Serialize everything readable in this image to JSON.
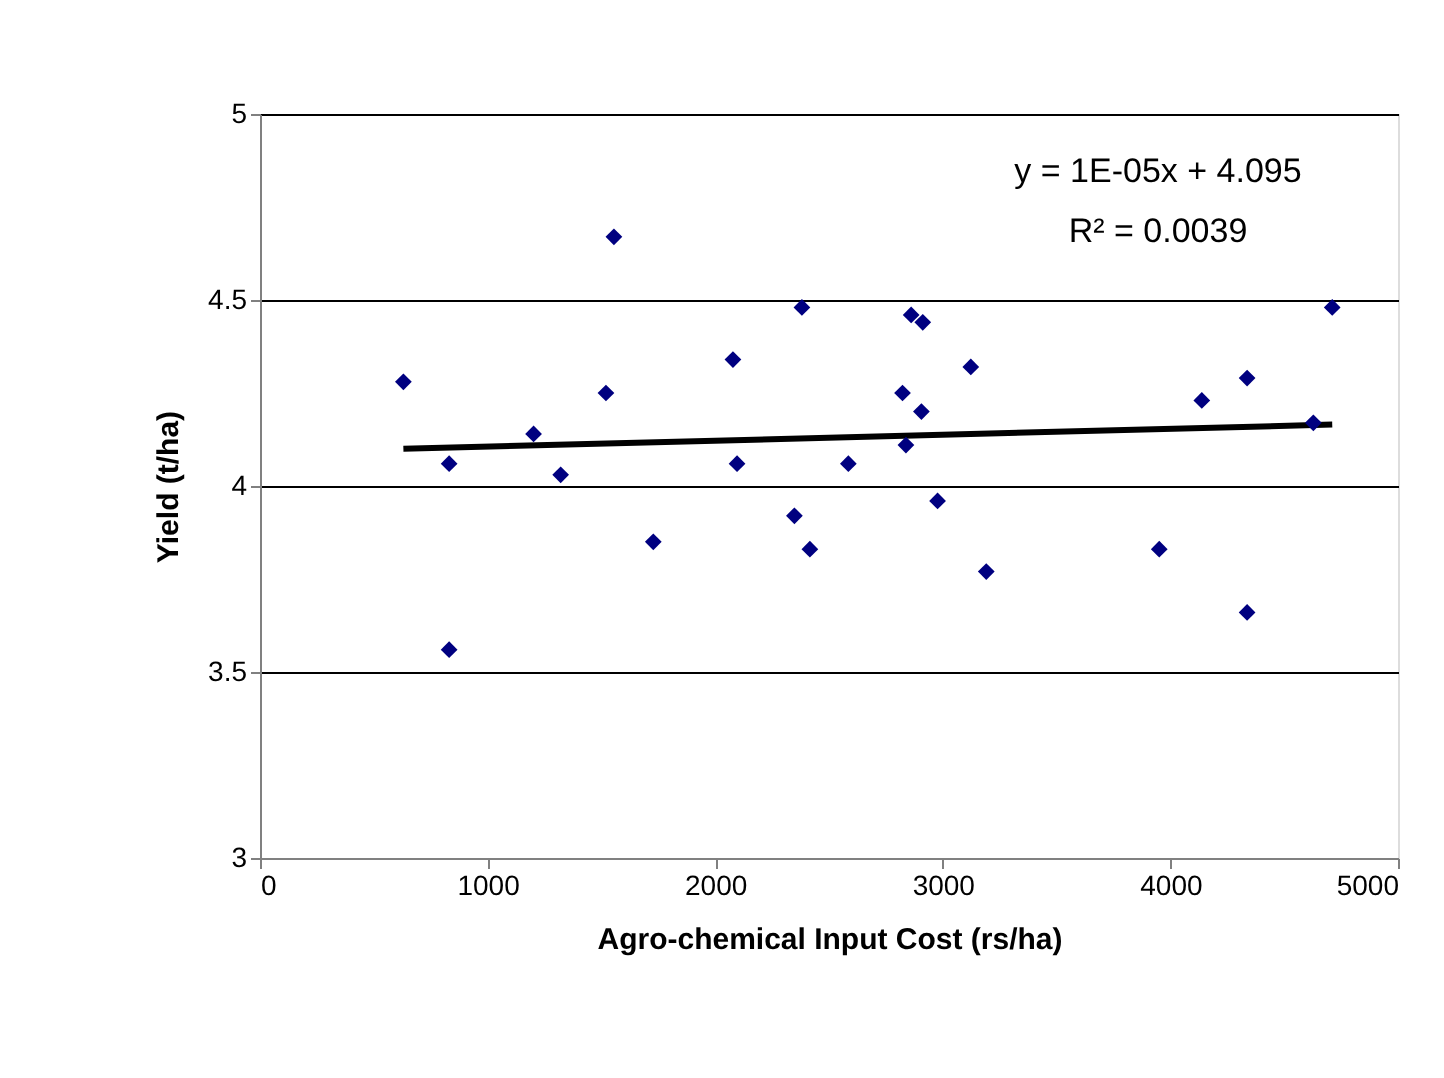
{
  "chart_data": {
    "type": "scatter",
    "xlabel": "Agro-chemical Input Cost (rs/ha)",
    "ylabel": "Yield (t/ha)",
    "xlim": [
      0,
      5000
    ],
    "xticks": [
      0,
      1000,
      2000,
      3000,
      4000,
      5000
    ],
    "ylim": [
      3,
      5
    ],
    "yticks": [
      3,
      3.5,
      4,
      4.5,
      5
    ],
    "grid": "y",
    "legend": false,
    "marker": "diamond",
    "annotations": [
      "y = 1E-05x + 4.095",
      "R² = 0.0039"
    ],
    "series": [
      {
        "type": "scatter",
        "color": "#000080",
        "x": [
          630,
          831,
          831,
          1202,
          1321,
          1555,
          1520,
          1728,
          2078,
          2096,
          2381,
          2348,
          2416,
          2585,
          2823,
          2906,
          2838,
          2861,
          2912,
          2977,
          3123,
          3191,
          3951,
          4138,
          4337,
          4337,
          4628,
          4711
        ],
        "values": [
          4.28,
          4.06,
          3.56,
          4.14,
          4.03,
          4.67,
          4.25,
          3.85,
          4.34,
          4.06,
          4.48,
          3.92,
          3.83,
          4.06,
          4.25,
          4.2,
          4.11,
          4.46,
          4.44,
          3.96,
          4.32,
          3.77,
          3.83,
          4.23,
          4.29,
          3.66,
          4.17,
          4.48
        ]
      },
      {
        "type": "line",
        "color": "#000000",
        "line_style": "solid",
        "marker": "none",
        "x": [
          630,
          4711
        ],
        "values": [
          4.1,
          4.165
        ]
      }
    ]
  }
}
